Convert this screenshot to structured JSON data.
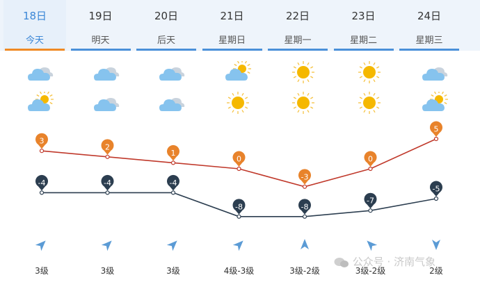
{
  "days": [
    {
      "date": "18日",
      "week": "今天",
      "active": true,
      "icon_top": "cloudy",
      "icon_bottom": "partly-cloudy",
      "high": 3,
      "low": -4,
      "wind_dir": "northeast-arrow",
      "wind_level": "3级"
    },
    {
      "date": "19日",
      "week": "明天",
      "active": false,
      "icon_top": "cloudy",
      "icon_bottom": "cloudy",
      "high": 2,
      "low": -4,
      "wind_dir": "northeast-arrow",
      "wind_level": "3级"
    },
    {
      "date": "20日",
      "week": "后天",
      "active": false,
      "icon_top": "cloudy",
      "icon_bottom": "cloudy",
      "high": 1,
      "low": -4,
      "wind_dir": "northeast-arrow",
      "wind_level": "3级"
    },
    {
      "date": "21日",
      "week": "星期日",
      "active": false,
      "icon_top": "partly-cloudy",
      "icon_bottom": "sunny",
      "high": 0,
      "low": -8,
      "wind_dir": "northeast-arrow",
      "wind_level": "4级-3级"
    },
    {
      "date": "22日",
      "week": "星期一",
      "active": false,
      "icon_top": "sunny",
      "icon_bottom": "sunny",
      "high": -3,
      "low": -8,
      "wind_dir": "north-arrow",
      "wind_level": "3级-2级"
    },
    {
      "date": "23日",
      "week": "星期二",
      "active": false,
      "icon_top": "sunny",
      "icon_bottom": "sunny",
      "high": 0,
      "low": -7,
      "wind_dir": "northwest-arrow",
      "wind_level": "3级-2级"
    },
    {
      "date": "24日",
      "week": "星期三",
      "active": false,
      "icon_top": "cloudy",
      "icon_bottom": "partly-cloudy",
      "high": 5,
      "low": -5,
      "wind_dir": "south-arrow",
      "wind_level": "2级"
    }
  ],
  "colors": {
    "high": "#e8832b",
    "high_line": "#c0392b",
    "low": "#2c3e50",
    "accent": "#3a86d6",
    "active_bar": "#f08a24"
  },
  "watermark": {
    "text": "公众号 · 济南气象"
  }
}
